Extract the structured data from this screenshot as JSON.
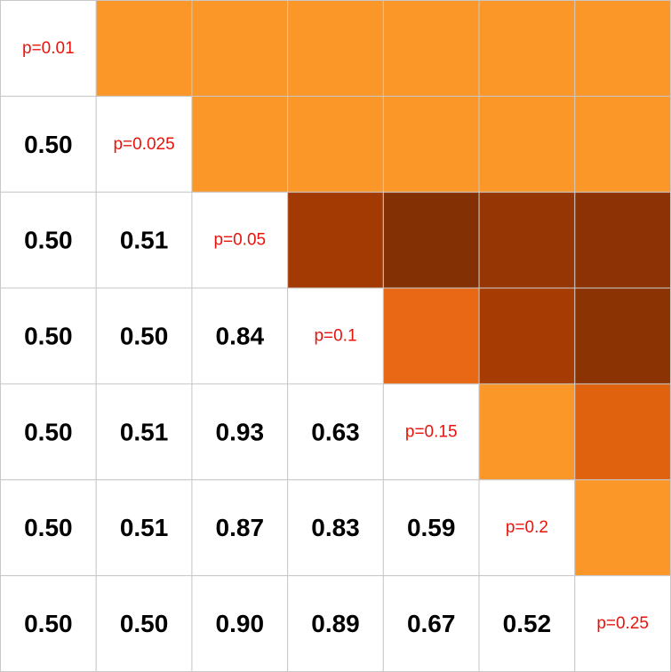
{
  "chart_data": {
    "type": "heatmap",
    "title": "",
    "diagonal_labels": [
      "p=0.01",
      "p=0.025",
      "p=0.05",
      "p=0.1",
      "p=0.15",
      "p=0.2",
      "p=0.25"
    ],
    "lower_values": [
      [],
      [
        "0.50"
      ],
      [
        "0.50",
        "0.51"
      ],
      [
        "0.50",
        "0.50",
        "0.84"
      ],
      [
        "0.50",
        "0.51",
        "0.93",
        "0.63"
      ],
      [
        "0.50",
        "0.51",
        "0.87",
        "0.83",
        "0.59"
      ],
      [
        "0.50",
        "0.50",
        "0.90",
        "0.89",
        "0.67",
        "0.52"
      ]
    ],
    "upper_colors": [
      [
        "#fb9729",
        "#fb9729",
        "#fb9729",
        "#fb9729",
        "#fb9729",
        "#fb9729"
      ],
      [
        "#fb9729",
        "#fb9729",
        "#fb9729",
        "#fb9729",
        "#fb9729"
      ],
      [
        "#a33a03",
        "#833104",
        "#963604",
        "#8c3204"
      ],
      [
        "#e96815",
        "#a63b03",
        "#8c3304"
      ],
      [
        "#fb9729",
        "#e0620f"
      ],
      [
        "#fb9729"
      ]
    ],
    "empty_cell_color": "#ffffff",
    "grid_color": "#c8c8c8",
    "diagonal_text_color": "#e8140c",
    "value_text_color": "#000000",
    "grid": true,
    "legend": "none"
  }
}
